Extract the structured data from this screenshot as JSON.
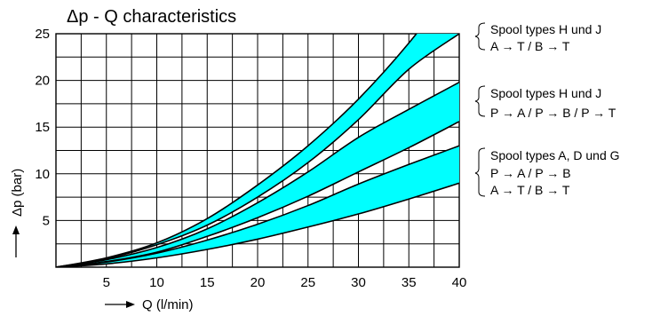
{
  "chart_data": {
    "type": "area",
    "title": "Δp - Q characteristics",
    "xlabel": "Q (l/min)",
    "ylabel": "Δp (bar)",
    "xlim": [
      0,
      40
    ],
    "ylim": [
      0,
      25
    ],
    "grid": true,
    "x_ticks": [
      5,
      10,
      15,
      20,
      25,
      30,
      35,
      40
    ],
    "y_ticks": [
      5,
      10,
      15,
      20,
      25
    ],
    "fill_color": "#00ffff",
    "line_color": "#000000",
    "x": [
      0,
      5,
      10,
      15,
      20,
      25,
      30,
      35,
      40
    ],
    "bands": [
      {
        "name": "Spool types H und J",
        "flow": "A → T / B → T",
        "upper": [
          0,
          1.0,
          2.6,
          5.2,
          8.8,
          13.0,
          18.0,
          24.0,
          31.0
        ],
        "lower": [
          0,
          0.9,
          2.4,
          4.5,
          7.5,
          11.2,
          15.8,
          21.2,
          25.0
        ]
      },
      {
        "name": "Spool types H und J",
        "flow": "P → A / P → B / P → T",
        "upper": [
          0,
          0.8,
          2.1,
          4.1,
          6.9,
          10.2,
          13.9,
          16.9,
          19.8
        ],
        "lower": [
          0,
          0.6,
          1.6,
          3.3,
          5.3,
          7.6,
          10.2,
          12.8,
          15.6
        ]
      },
      {
        "name": "Spool types A, D und G",
        "flow": [
          "P → A / P → B",
          "A → T / B → T"
        ],
        "upper": [
          0,
          0.55,
          1.5,
          2.9,
          4.6,
          6.6,
          8.9,
          11.0,
          13.0
        ],
        "lower": [
          0,
          0.35,
          1.0,
          1.9,
          3.0,
          4.3,
          5.7,
          7.3,
          9.0
        ]
      }
    ]
  },
  "legend": [
    {
      "line1": "Spool types H und J",
      "line2": "A → T / B → T"
    },
    {
      "line1": "Spool types H und J",
      "line2": "P → A / P → B / P → T"
    },
    {
      "line1": "Spool types A, D und G",
      "line2": "P → A / P → B",
      "line3": "A → T / B → T"
    }
  ]
}
